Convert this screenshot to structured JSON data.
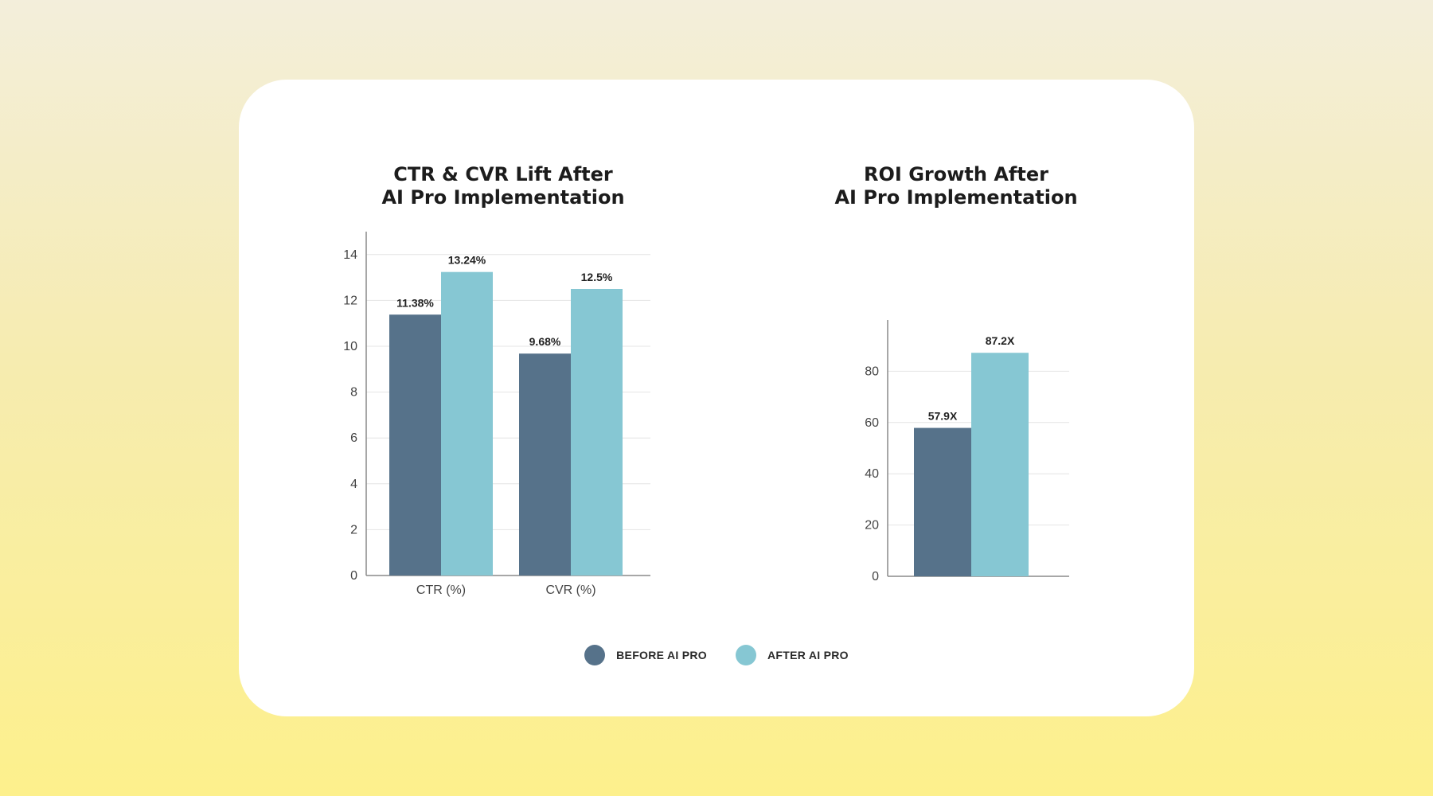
{
  "colors": {
    "before": "#56728a",
    "after": "#86c7d3"
  },
  "legend": [
    {
      "label": "BEFORE AI PRO",
      "color": "#56728a"
    },
    {
      "label": "AFTER AI PRO",
      "color": "#86c7d3"
    }
  ],
  "chart_data": [
    {
      "type": "bar",
      "title": [
        "CTR & CVR Lift After",
        "AI Pro Implementation"
      ],
      "categories": [
        "CTR (%)",
        "CVR (%)"
      ],
      "series": [
        {
          "name": "BEFORE AI PRO",
          "values": [
            11.38,
            9.68
          ],
          "labels": [
            "11.38%",
            "9.68%"
          ]
        },
        {
          "name": "AFTER AI PRO",
          "values": [
            13.24,
            12.5
          ],
          "labels": [
            "13.24%",
            "12.5%"
          ]
        }
      ],
      "yticks": [
        0,
        2,
        4,
        6,
        8,
        10,
        12,
        14
      ],
      "ylim": [
        0,
        15
      ]
    },
    {
      "type": "bar",
      "title": [
        "ROI Growth After",
        "AI Pro Implementation"
      ],
      "categories": [
        ""
      ],
      "series": [
        {
          "name": "BEFORE AI PRO",
          "values": [
            57.9
          ],
          "labels": [
            "57.9X"
          ]
        },
        {
          "name": "AFTER AI PRO",
          "values": [
            87.2
          ],
          "labels": [
            "87.2X"
          ]
        }
      ],
      "yticks": [
        0,
        20,
        40,
        60,
        80
      ],
      "ylim": [
        0,
        100
      ]
    }
  ]
}
